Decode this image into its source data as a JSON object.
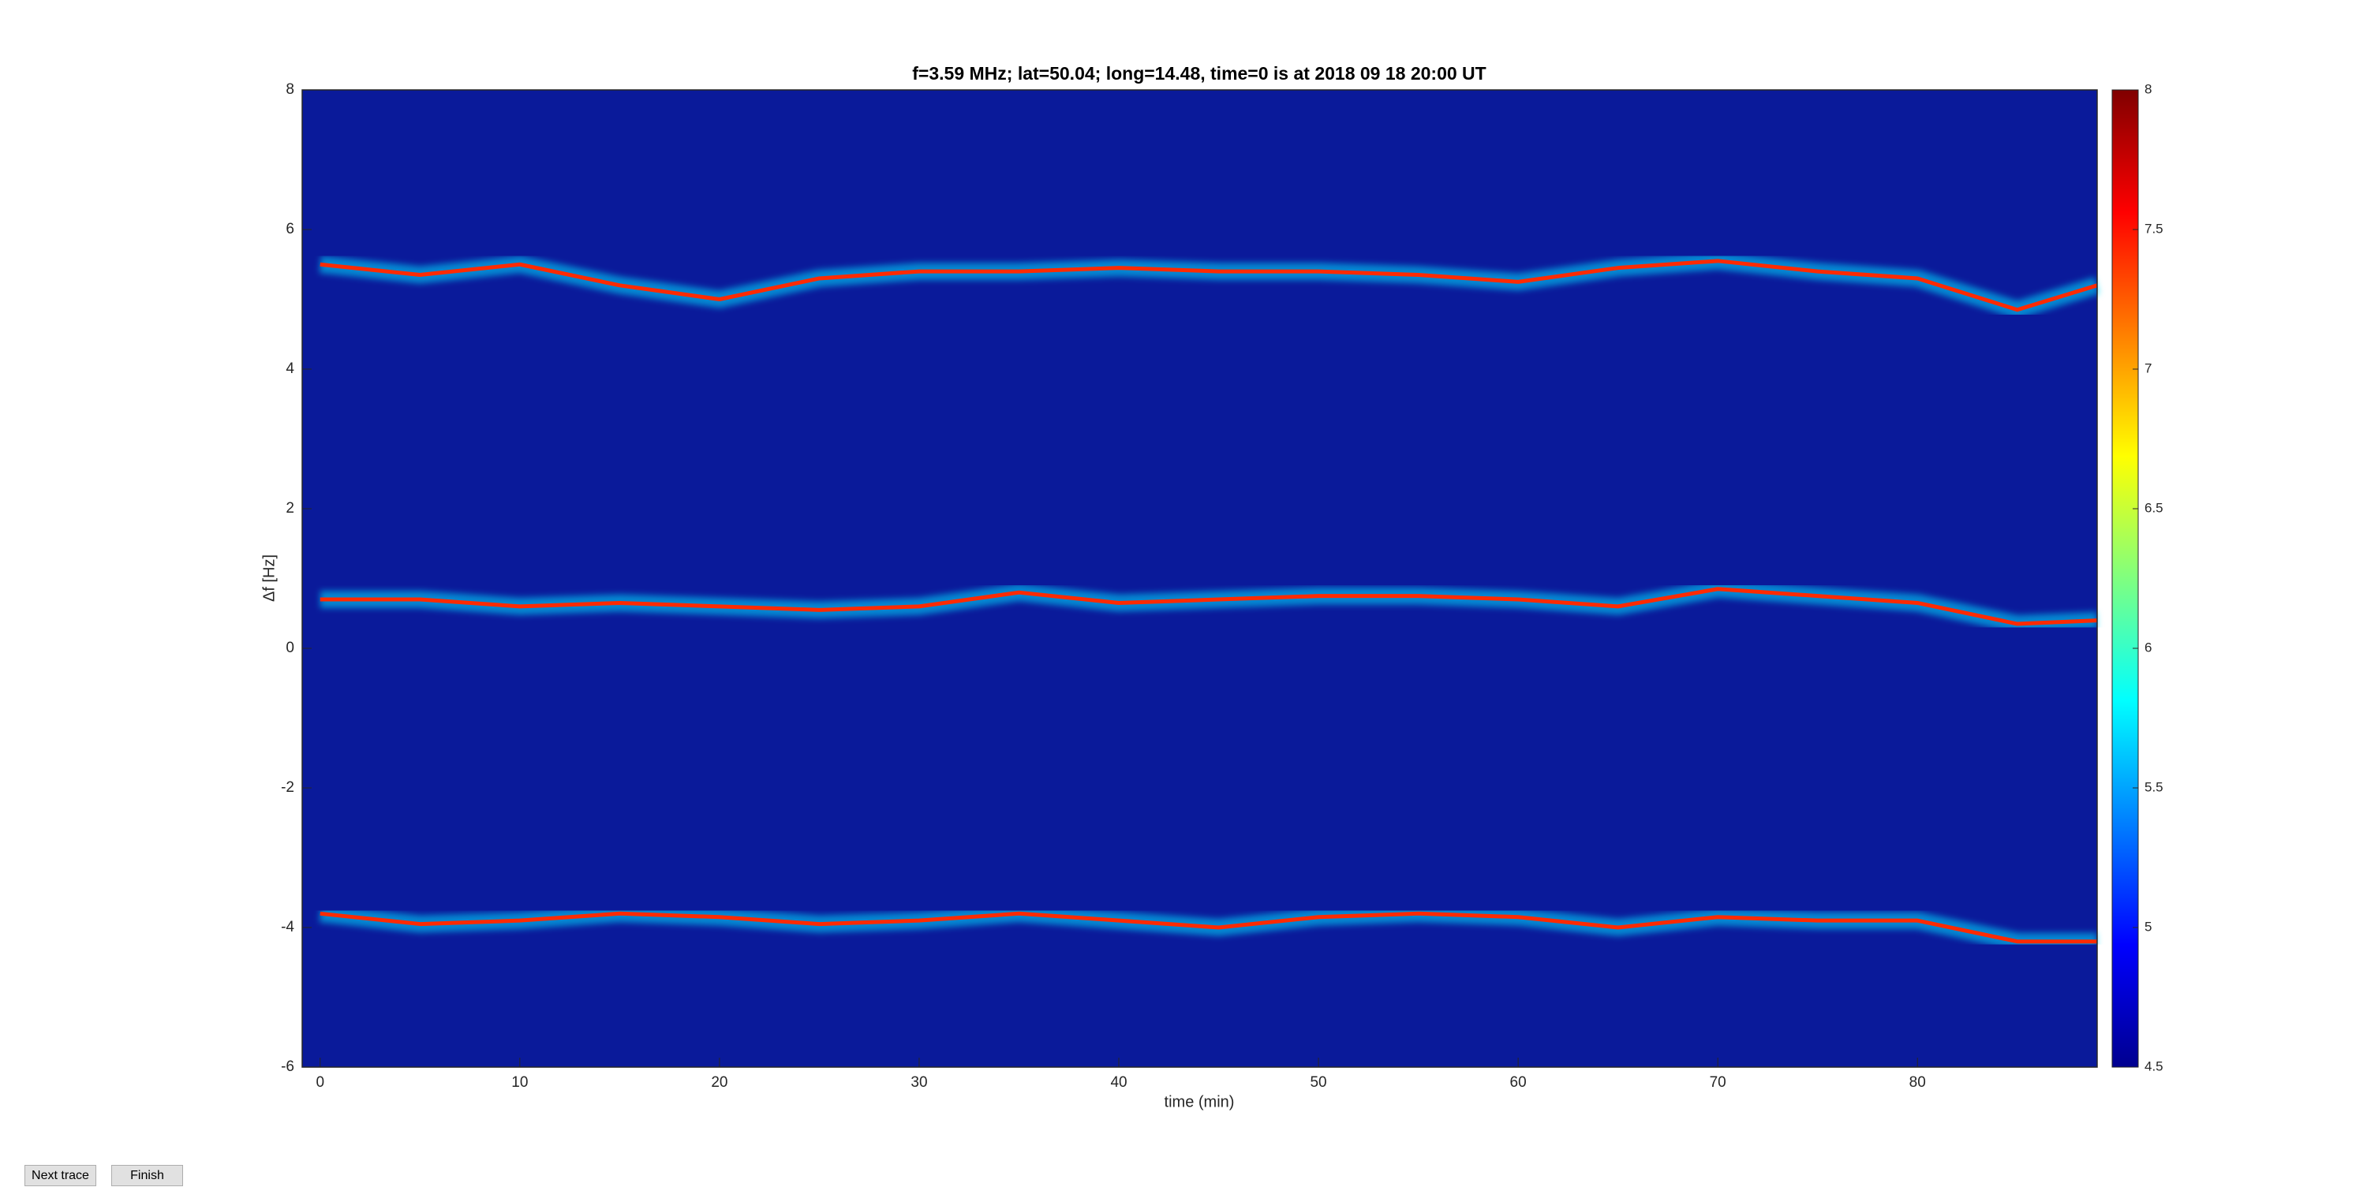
{
  "chart_data": {
    "type": "spectrogram",
    "title": "f=3.59 MHz;  lat=50.04; long=14.48, time=0 is at 2018 09 18 20:00 UT",
    "xlabel": "time (min)",
    "ylabel": "Δf [Hz]",
    "xlim": [
      -0.9,
      89
    ],
    "ylim": [
      -6,
      8
    ],
    "xticks": [
      0,
      10,
      20,
      30,
      40,
      50,
      60,
      70,
      80
    ],
    "yticks": [
      -6,
      -4,
      -2,
      0,
      2,
      4,
      6,
      8
    ],
    "clim": [
      4.5,
      8
    ],
    "cticks": [
      4.5,
      5,
      5.5,
      6,
      6.5,
      7,
      7.5,
      8
    ],
    "x": [
      0,
      5,
      10,
      15,
      20,
      25,
      30,
      35,
      40,
      45,
      50,
      55,
      60,
      65,
      70,
      75,
      80,
      85,
      89
    ],
    "series": [
      {
        "color": "#ff2a00",
        "values": [
          5.5,
          5.35,
          5.5,
          5.2,
          5.0,
          5.3,
          5.4,
          5.4,
          5.45,
          5.4,
          5.4,
          5.35,
          5.25,
          5.45,
          5.55,
          5.4,
          5.3,
          4.85,
          5.2
        ]
      },
      {
        "color": "#ff2a00",
        "values": [
          0.7,
          0.7,
          0.6,
          0.65,
          0.6,
          0.55,
          0.6,
          0.8,
          0.65,
          0.7,
          0.75,
          0.75,
          0.7,
          0.6,
          0.85,
          0.75,
          0.65,
          0.35,
          0.4
        ]
      },
      {
        "color": "#ff2a00",
        "values": [
          -3.8,
          -3.95,
          -3.9,
          -3.8,
          -3.85,
          -3.95,
          -3.9,
          -3.8,
          -3.9,
          -4.0,
          -3.85,
          -3.8,
          -3.85,
          -4.0,
          -3.85,
          -3.9,
          -3.9,
          -4.2,
          -4.2
        ]
      }
    ]
  },
  "buttons": [
    "Next trace",
    "Finish"
  ]
}
